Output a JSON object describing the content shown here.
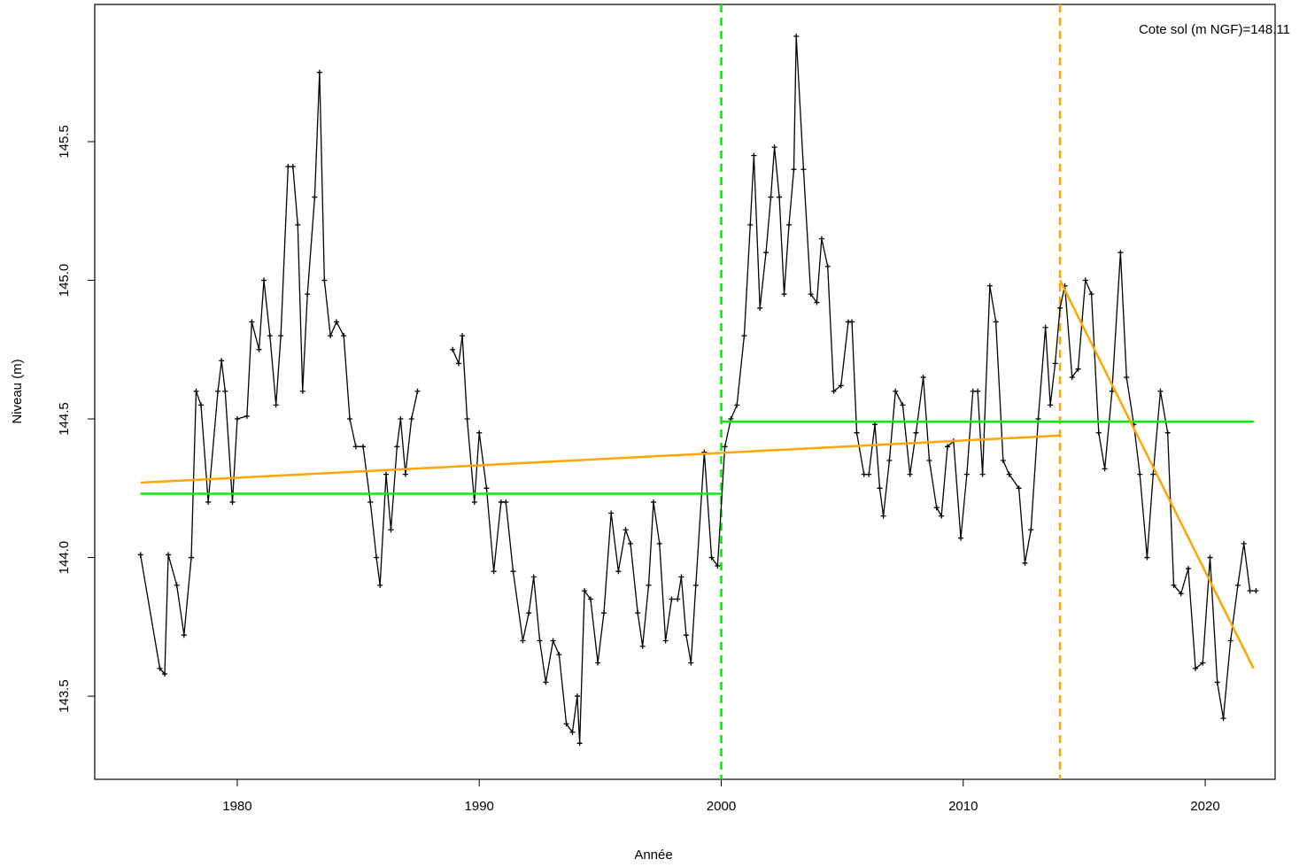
{
  "chart_data": {
    "type": "line",
    "xlabel": "Année",
    "ylabel": "Niveau (m)",
    "annotation": "Cote sol (m NGF)=148.11",
    "xlim": [
      1974.11,
      2022.89
    ],
    "ylim": [
      143.2,
      145.995
    ],
    "xticks": [
      1980,
      1990,
      2000,
      2010,
      2020
    ],
    "yticks": [
      143.5,
      {
        "value": 144,
        "label": "144.0"
      },
      144.5,
      {
        "value": 145,
        "label": "145.0"
      },
      145.5
    ],
    "series": [
      {
        "color": "#000000",
        "markers": true,
        "x": [
          1976.0,
          1976.8,
          1977.0,
          1977.15,
          1977.5,
          1977.8,
          1978.1,
          1978.3,
          1978.5,
          1978.8,
          1979.2,
          1979.35,
          1979.5,
          1979.8,
          1980.0,
          1980.4,
          1980.6,
          1980.9,
          1981.1,
          1981.35,
          1981.6,
          1981.8,
          1982.1,
          1982.3,
          1982.5,
          1982.7,
          1982.9,
          1983.2,
          1983.4,
          1983.6,
          1983.85,
          1984.1,
          1984.4,
          1984.65,
          1984.9,
          1985.2,
          1985.5,
          1985.75,
          1985.9,
          1986.15,
          1986.35,
          1986.6,
          1986.75,
          1986.95,
          1987.2,
          1987.45,
          1988.2,
          1988.9,
          1989.15,
          1989.3,
          1989.5,
          1989.8,
          1990.0,
          1990.3,
          1990.6,
          1990.9,
          1991.1,
          1991.4,
          1991.8,
          1992.05,
          1992.25,
          1992.5,
          1992.75,
          1993.05,
          1993.3,
          1993.6,
          1993.85,
          1994.05,
          1994.15,
          1994.35,
          1994.6,
          1994.9,
          1995.15,
          1995.45,
          1995.75,
          1996.05,
          1996.25,
          1996.55,
          1996.75,
          1997.0,
          1997.2,
          1997.45,
          1997.7,
          1997.95,
          1998.2,
          1998.35,
          1998.55,
          1998.75,
          1998.95,
          1999.3,
          1999.6,
          1999.85,
          2000.15,
          2000.4,
          2000.65,
          2000.95,
          2001.2,
          2001.35,
          2001.6,
          2001.85,
          2002.05,
          2002.2,
          2002.4,
          2002.6,
          2002.8,
          2003.0,
          2003.1,
          2003.4,
          2003.7,
          2003.95,
          2004.15,
          2004.4,
          2004.65,
          2004.95,
          2005.25,
          2005.4,
          2005.6,
          2005.9,
          2006.1,
          2006.35,
          2006.55,
          2006.7,
          2006.95,
          2007.2,
          2007.5,
          2007.8,
          2008.05,
          2008.35,
          2008.6,
          2008.9,
          2009.1,
          2009.35,
          2009.6,
          2009.9,
          2010.15,
          2010.4,
          2010.6,
          2010.8,
          2011.1,
          2011.35,
          2011.65,
          2011.9,
          2012.3,
          2012.55,
          2012.8,
          2013.1,
          2013.4,
          2013.6,
          2013.8,
          2014.0,
          2014.2,
          2014.5,
          2014.75,
          2015.05,
          2015.3,
          2015.6,
          2015.85,
          2016.15,
          2016.5,
          2016.75,
          2017.05,
          2017.3,
          2017.6,
          2017.85,
          2018.15,
          2018.45,
          2018.7,
          2019.0,
          2019.3,
          2019.6,
          2019.9,
          2020.2,
          2020.5,
          2020.75,
          2021.05,
          2021.35,
          2021.6,
          2021.85,
          2022.1
        ],
        "values": [
          144.01,
          143.6,
          143.58,
          144.01,
          143.9,
          143.72,
          144.0,
          144.6,
          144.55,
          144.2,
          144.6,
          144.71,
          144.6,
          144.2,
          144.5,
          144.51,
          144.85,
          144.75,
          145.0,
          144.8,
          144.55,
          144.8,
          145.41,
          145.41,
          145.2,
          144.6,
          144.95,
          145.3,
          145.75,
          145.0,
          144.8,
          144.85,
          144.8,
          144.5,
          144.4,
          144.4,
          144.2,
          144.0,
          143.9,
          144.3,
          144.1,
          144.4,
          144.5,
          144.3,
          144.5,
          144.6,
          null,
          144.75,
          144.7,
          144.8,
          144.5,
          144.2,
          144.45,
          144.25,
          143.95,
          144.2,
          144.2,
          143.95,
          143.7,
          143.8,
          143.93,
          143.7,
          143.55,
          143.7,
          143.65,
          143.4,
          143.37,
          143.5,
          143.33,
          143.88,
          143.85,
          143.62,
          143.8,
          144.16,
          143.95,
          144.1,
          144.05,
          143.8,
          143.68,
          143.9,
          144.2,
          144.05,
          143.7,
          143.85,
          143.85,
          143.93,
          143.72,
          143.62,
          143.9,
          144.38,
          144.0,
          143.97,
          144.4,
          144.5,
          144.55,
          144.8,
          145.2,
          145.45,
          144.9,
          145.1,
          145.3,
          145.48,
          145.3,
          144.95,
          145.2,
          145.4,
          145.88,
          145.4,
          144.95,
          144.92,
          145.15,
          145.05,
          144.6,
          144.62,
          144.85,
          144.85,
          144.45,
          144.3,
          144.3,
          144.48,
          144.25,
          144.15,
          144.35,
          144.6,
          144.55,
          144.3,
          144.45,
          144.65,
          144.35,
          144.18,
          144.15,
          144.4,
          144.42,
          144.07,
          144.3,
          144.6,
          144.6,
          144.3,
          144.98,
          144.85,
          144.35,
          144.3,
          144.25,
          143.98,
          144.1,
          144.5,
          144.83,
          144.55,
          144.7,
          144.9,
          144.98,
          144.65,
          144.68,
          145.0,
          144.95,
          144.45,
          144.32,
          144.6,
          145.1,
          144.65,
          144.48,
          144.3,
          144.0,
          144.3,
          144.6,
          144.45,
          143.9,
          143.87,
          143.96,
          143.6,
          143.62,
          144.0,
          143.55,
          143.42,
          143.7,
          143.9,
          144.05,
          143.88,
          143.88
        ]
      },
      {
        "color": "#00ee00",
        "x": [
          1976,
          2000
        ],
        "values": [
          144.23,
          144.23
        ]
      },
      {
        "color": "#00ee00",
        "x": [
          2000,
          2022
        ],
        "values": [
          144.49,
          144.49
        ]
      },
      {
        "color": "#ffa500",
        "x": [
          1976,
          2014
        ],
        "values": [
          144.27,
          144.44
        ]
      },
      {
        "color": "#ffa500",
        "x": [
          2014,
          2022
        ],
        "values": [
          145.0,
          143.6
        ]
      }
    ],
    "vlines": [
      {
        "x": 2000,
        "color": "#00ee00"
      },
      {
        "x": 2014,
        "color": "#ffa500"
      }
    ]
  }
}
